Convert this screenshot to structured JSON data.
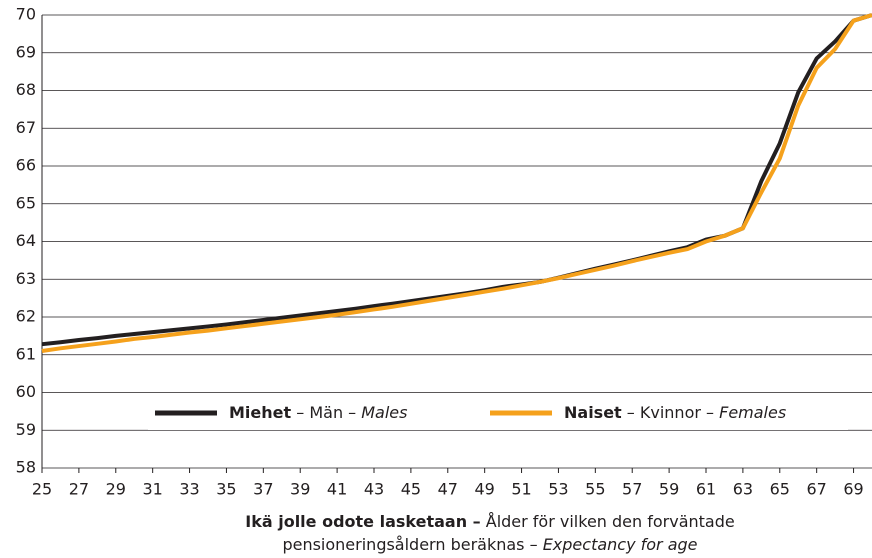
{
  "chart_data": {
    "type": "line",
    "x": [
      25,
      26,
      27,
      28,
      29,
      30,
      31,
      32,
      33,
      34,
      35,
      36,
      37,
      38,
      39,
      40,
      41,
      42,
      43,
      44,
      45,
      46,
      47,
      48,
      49,
      50,
      51,
      52,
      53,
      54,
      55,
      56,
      57,
      58,
      59,
      60,
      61,
      62,
      63,
      64,
      65,
      66,
      67,
      68,
      69,
      70
    ],
    "series": [
      {
        "name": "Miehet",
        "name_sv": " – Män – ",
        "name_en": "Males",
        "color": "#231f20",
        "values": [
          61.28,
          61.33,
          61.39,
          61.44,
          61.5,
          61.55,
          61.6,
          61.65,
          61.7,
          61.75,
          61.8,
          61.86,
          61.92,
          61.98,
          62.04,
          62.1,
          62.16,
          62.22,
          62.29,
          62.35,
          62.42,
          62.49,
          62.56,
          62.63,
          62.71,
          62.8,
          62.86,
          62.93,
          63.04,
          63.16,
          63.28,
          63.39,
          63.5,
          63.62,
          63.74,
          63.85,
          64.05,
          64.15,
          64.35,
          65.6,
          66.6,
          67.95,
          68.85,
          69.3,
          69.85,
          70.0
        ]
      },
      {
        "name": "Naiset",
        "name_sv": " – Kvinnor – ",
        "name_en": "Females",
        "color": "#f5a11c",
        "values": [
          61.1,
          61.17,
          61.23,
          61.29,
          61.35,
          61.42,
          61.47,
          61.53,
          61.59,
          61.64,
          61.7,
          61.76,
          61.82,
          61.88,
          61.94,
          62.0,
          62.06,
          62.13,
          62.2,
          62.27,
          62.35,
          62.43,
          62.51,
          62.59,
          62.67,
          62.75,
          62.84,
          62.93,
          63.03,
          63.14,
          63.25,
          63.36,
          63.48,
          63.59,
          63.7,
          63.8,
          64.0,
          64.15,
          64.35,
          65.3,
          66.2,
          67.6,
          68.6,
          69.1,
          69.85,
          70.0
        ]
      }
    ],
    "xlabel": {
      "bold": "Ikä jolle odote lasketaan –",
      "line1": " Ålder för vilken den forväntade",
      "line2": "pensioneringsåldern beräknas – ",
      "italic": "Expectancy for age"
    },
    "xlim": [
      25,
      70
    ],
    "xticks": [
      25,
      27,
      29,
      31,
      33,
      35,
      37,
      39,
      41,
      43,
      45,
      47,
      49,
      51,
      53,
      55,
      57,
      59,
      61,
      63,
      65,
      67,
      69
    ],
    "ylim": [
      58,
      70
    ],
    "yticks": [
      58,
      59,
      60,
      61,
      62,
      63,
      64,
      65,
      66,
      67,
      68,
      69,
      70
    ],
    "grid": true,
    "legend": "bottom"
  }
}
